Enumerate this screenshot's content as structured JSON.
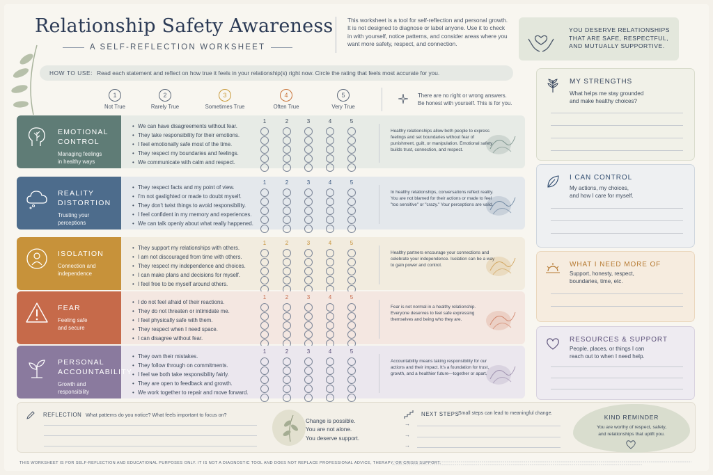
{
  "header": {
    "title": "Relationship Safety Awareness",
    "subtitle": "A SELF-REFLECTION WORKSHEET",
    "intro": "This worksheet is a tool for self-reflection and personal growth. It is not designed to diagnose or label anyone. Use it to check in with yourself, notice patterns, and consider areas where you want more safety, respect, and connection.",
    "affirmation": [
      "YOU DESERVE RELATIONSHIPS",
      "THAT ARE SAFE, RESPECTFUL,",
      "AND MUTUALLY SUPPORTIVE."
    ]
  },
  "how_to": {
    "label": "HOW TO USE:",
    "text": "Read each statement and reflect on how true it feels in your relationship(s) right now. Circle the rating that feels most accurate for you."
  },
  "scale": {
    "items": [
      {
        "num": "1",
        "label": "Not True",
        "color": "#5a6678"
      },
      {
        "num": "2",
        "label": "Rarely True",
        "color": "#5a6678"
      },
      {
        "num": "3",
        "label": "Sometimes True",
        "color": "#c99a3a"
      },
      {
        "num": "4",
        "label": "Often True",
        "color": "#c9743a"
      },
      {
        "num": "5",
        "label": "Very True",
        "color": "#5a6678"
      }
    ],
    "note": [
      "There are no right or wrong answers.",
      "Be honest with yourself. This is for you."
    ]
  },
  "rating_numbers": [
    "1",
    "2",
    "3",
    "4",
    "5"
  ],
  "categories": [
    {
      "name": [
        "EMOTIONAL",
        "CONTROL"
      ],
      "sub": [
        "Managing feelings",
        "in healthy ways"
      ],
      "tile_color": "#5f7c76",
      "bg_color": "#e7ebe6",
      "num_color": "#3d4a5c",
      "icon": "tree-head-icon",
      "statements": [
        "We can have disagreements without fear.",
        "They take responsibility for their emotions.",
        "I feel emotionally safe most of the time.",
        "They respect my boundaries and feelings.",
        "We communicate with calm and respect."
      ],
      "description": "Healthy relationships allow both people to express feelings and set boundaries without fear of punishment, guilt, or manipulation. Emotional safety builds trust, connection, and respect."
    },
    {
      "name": [
        "REALITY",
        "DISTORTION"
      ],
      "sub": [
        "Trusting your",
        "perceptions"
      ],
      "tile_color": "#4d6c8c",
      "bg_color": "#e4e8ec",
      "num_color": "#3d5a80",
      "icon": "cloud-icon",
      "statements": [
        "They respect facts and my point of view.",
        "I'm not gaslighted or made to doubt myself.",
        "They don't twist things to avoid responsibility.",
        "I feel confident in my memory and experiences.",
        "We can talk openly about what really happened."
      ],
      "description": "In healthy relationships, conversations reflect reality. You are not blamed for their actions or made to feel \"too sensitive\" or \"crazy.\" Your perceptions are valid."
    },
    {
      "name": [
        "ISOLATION"
      ],
      "sub": [
        "Connection and",
        "independence"
      ],
      "tile_color": "#c7923a",
      "bg_color": "#f2ecdf",
      "num_color": "#c7923a",
      "icon": "person-circle-icon",
      "statements": [
        "They support my relationships with others.",
        "I am not discouraged from time with others.",
        "They respect my independence and choices.",
        "I can make plans and decisions for myself.",
        "I feel free to be myself around others."
      ],
      "description": "Healthy partners encourage your connections and celebrate your independence. Isolation can be a way to gain power and control."
    },
    {
      "name": [
        "FEAR"
      ],
      "sub": [
        "Feeling safe",
        "and secure"
      ],
      "tile_color": "#c66a4a",
      "bg_color": "#f4e7e1",
      "num_color": "#c66a4a",
      "icon": "warning-icon",
      "statements": [
        "I do not feel afraid of their reactions.",
        "They do not threaten or intimidate me.",
        "I feel physically safe with them.",
        "They respect when I need space.",
        "I can disagree without fear."
      ],
      "description": "Fear is not normal in a healthy relationship. Everyone deserves to feel safe expressing themselves and being who they are."
    },
    {
      "name": [
        "PERSONAL",
        "ACCOUNTABILITY"
      ],
      "sub": [
        "Growth and",
        "responsibility"
      ],
      "tile_color": "#8a7a9e",
      "bg_color": "#ebe7ee",
      "num_color": "#5a4f78",
      "icon": "sprout-icon",
      "statements": [
        "They own their mistakes.",
        "They follow through on commitments.",
        "I feel we both take responsibility fairly.",
        "They are open to feedback and growth.",
        "We work together to repair and move forward."
      ],
      "description": "Accountability means taking responsibility for our actions and their impact. It's a foundation for trust, growth, and a healthier future—together or apart."
    }
  ],
  "right_panels": [
    {
      "title": "MY STRENGTHS",
      "desc": [
        "What helps me stay grounded",
        "and make healthy choices?"
      ],
      "bg": "#f1f1e8",
      "border": "#d9dccc",
      "title_color": "#34425a",
      "icon": "plant-icon"
    },
    {
      "title": "I CAN CONTROL",
      "desc": [
        "My actions, my choices,",
        "and how I care for myself."
      ],
      "bg": "#eef0f2",
      "border": "#cfd6de",
      "title_color": "#2f4b6e",
      "icon": "leaf-icon"
    },
    {
      "title": "WHAT I NEED MORE OF",
      "desc": [
        "Support, honesty, respect,",
        "boundaries, time, etc."
      ],
      "bg": "#f6ecdf",
      "border": "#ead7bd",
      "title_color": "#b5782f",
      "icon": "sunrise-icon"
    },
    {
      "title": "RESOURCES & SUPPORT",
      "desc": [
        "People, places, or things I can",
        "reach out to when I need help."
      ],
      "bg": "#eeebf1",
      "border": "#d8d2df",
      "title_color": "#5a4f78",
      "icon": "heart-icon"
    }
  ],
  "bottom": {
    "reflection_label": "REFLECTION",
    "reflection_prompt": "What patterns do you notice? What feels important to focus on?",
    "change_lines": [
      "Change is possible.",
      "You are not alone.",
      "You deserve support."
    ],
    "next_steps_label": "NEXT STEPS",
    "next_steps_prompt": "Small steps can lead to meaningful change.",
    "kind_title": "KIND REMINDER",
    "kind_text": [
      "You are worthy of respect, safety,",
      "and relationships that uplift you."
    ]
  },
  "footer": "THIS WORKSHEET IS FOR SELF-REFLECTION AND EDUCATIONAL PURPOSES ONLY. IT IS NOT A DIAGNOSTIC TOOL AND DOES NOT REPLACE PROFESSIONAL ADVICE, THERAPY, OR CRISIS SUPPORT."
}
